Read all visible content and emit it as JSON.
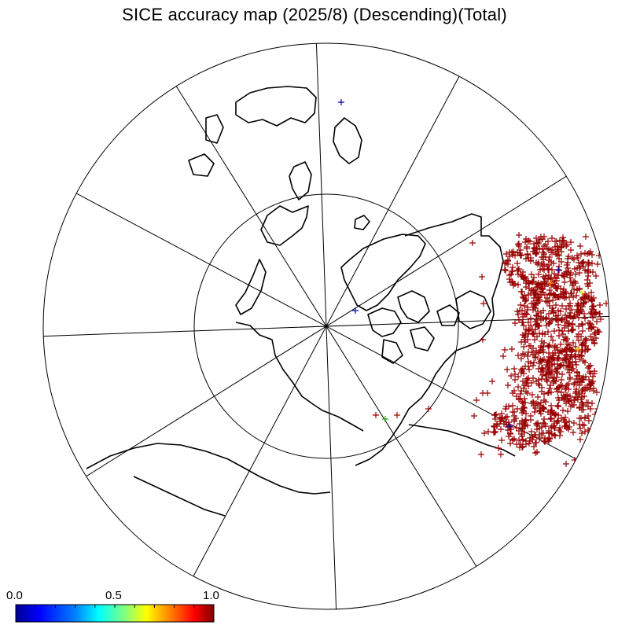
{
  "title": "SICE accuracy map (2025/8) (Descending)(Total)",
  "map": {
    "projection": "north-polar-stereographic",
    "meridian_spacing_deg": 30,
    "parallel_circles": 2,
    "background": "#ffffff",
    "coastline_color": "#000000"
  },
  "observations": {
    "marker": "plus",
    "dominant_color": "#990000",
    "value_scale": [
      0.0,
      1.0
    ]
  },
  "colorbar": {
    "labels": [
      "0.0",
      "0.5",
      "1.0"
    ],
    "range": [
      0.0,
      1.0
    ],
    "colors": [
      "#00008f",
      "#0000ff",
      "#0080ff",
      "#00ffff",
      "#80ff80",
      "#ffff00",
      "#ff8000",
      "#ff0000",
      "#800000"
    ]
  }
}
